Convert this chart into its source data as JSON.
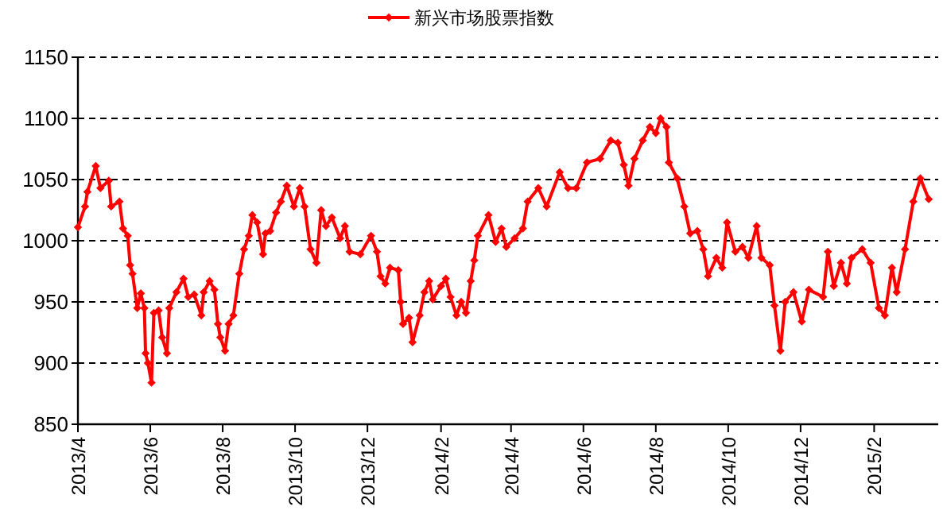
{
  "chart_data": {
    "type": "line",
    "x": [
      "2013-04-01",
      "2013-04-07",
      "2013-04-09",
      "2013-04-16",
      "2013-04-20",
      "2013-04-27",
      "2013-04-29",
      "2013-05-06",
      "2013-05-09",
      "2013-05-13",
      "2013-05-15",
      "2013-05-17",
      "2013-05-21",
      "2013-05-24",
      "2013-05-27",
      "2013-05-28",
      "2013-05-30",
      "2013-06-02",
      "2013-06-04",
      "2013-06-08",
      "2013-06-11",
      "2013-06-15",
      "2013-06-17",
      "2013-06-23",
      "2013-06-29",
      "2013-07-03",
      "2013-07-08",
      "2013-07-14",
      "2013-07-16",
      "2013-07-21",
      "2013-07-25",
      "2013-07-28",
      "2013-07-30",
      "2013-08-03",
      "2013-08-06",
      "2013-08-10",
      "2013-08-15",
      "2013-08-19",
      "2013-08-23",
      "2013-08-26",
      "2013-08-30",
      "2013-09-04",
      "2013-09-06",
      "2013-09-10",
      "2013-09-15",
      "2013-09-19",
      "2013-09-24",
      "2013-09-30",
      "2013-10-05",
      "2013-10-09",
      "2013-10-14",
      "2013-10-19",
      "2013-10-23",
      "2013-10-27",
      "2013-11-01",
      "2013-11-08",
      "2013-11-12",
      "2013-11-16",
      "2013-11-25",
      "2013-12-04",
      "2013-12-09",
      "2013-12-12",
      "2013-12-16",
      "2013-12-20",
      "2013-12-27",
      "2013-12-29",
      "2013-12-31",
      "2014-01-05",
      "2014-01-08",
      "2014-01-14",
      "2014-01-18",
      "2014-01-22",
      "2014-01-25",
      "2014-02-01",
      "2014-02-05",
      "2014-02-09",
      "2014-02-14",
      "2014-02-18",
      "2014-02-22",
      "2014-02-26",
      "2014-03-01",
      "2014-03-04",
      "2014-03-13",
      "2014-03-19",
      "2014-03-24",
      "2014-03-28",
      "2014-04-04",
      "2014-04-11",
      "2014-04-15",
      "2014-04-24",
      "2014-05-01",
      "2014-05-12",
      "2014-05-19",
      "2014-05-26",
      "2014-06-04",
      "2014-06-15",
      "2014-06-24",
      "2014-06-30",
      "2014-07-05",
      "2014-07-09",
      "2014-07-14",
      "2014-07-21",
      "2014-07-27",
      "2014-08-01",
      "2014-08-05",
      "2014-08-10",
      "2014-08-12",
      "2014-08-19",
      "2014-08-25",
      "2014-08-30",
      "2014-09-05",
      "2014-09-10",
      "2014-09-14",
      "2014-09-21",
      "2014-09-26",
      "2014-09-30",
      "2014-10-07",
      "2014-10-13",
      "2014-10-18",
      "2014-10-25",
      "2014-10-29",
      "2014-11-05",
      "2014-11-09",
      "2014-11-14",
      "2014-11-18",
      "2014-11-25",
      "2014-12-02",
      "2014-12-08",
      "2014-12-20",
      "2014-12-24",
      "2014-12-29",
      "2015-01-04",
      "2015-01-09",
      "2015-01-13",
      "2015-01-22",
      "2015-01-29",
      "2015-02-05",
      "2015-02-10",
      "2015-02-16",
      "2015-02-20",
      "2015-02-27",
      "2015-03-06",
      "2015-03-12",
      "2015-03-19"
    ],
    "series": [
      {
        "name": "新兴市场股票指数",
        "color": "#ff0000",
        "values": [
          1011,
          1028,
          1040,
          1061,
          1043,
          1049,
          1028,
          1032,
          1010,
          1004,
          980,
          973,
          945,
          957,
          945,
          908,
          900,
          884,
          941,
          943,
          921,
          908,
          945,
          958,
          969,
          954,
          956,
          939,
          958,
          967,
          960,
          932,
          921,
          910,
          932,
          939,
          973,
          993,
          1004,
          1021,
          1015,
          989,
          1006,
          1008,
          1023,
          1032,
          1045,
          1028,
          1043,
          1028,
          993,
          982,
          1025,
          1012,
          1019,
          1002,
          1012,
          991,
          989,
          1004,
          991,
          971,
          965,
          978,
          976,
          950,
          932,
          937,
          917,
          939,
          958,
          967,
          952,
          963,
          969,
          954,
          939,
          950,
          941,
          967,
          984,
          1004,
          1021,
          999,
          1010,
          995,
          1002,
          1010,
          1032,
          1043,
          1028,
          1056,
          1043,
          1043,
          1064,
          1067,
          1082,
          1080,
          1062,
          1045,
          1067,
          1082,
          1093,
          1088,
          1100,
          1093,
          1064,
          1051,
          1028,
          1006,
          1008,
          993,
          971,
          986,
          978,
          1015,
          991,
          995,
          986,
          1012,
          986,
          980,
          947,
          910,
          950,
          958,
          934,
          960,
          954,
          991,
          963,
          982,
          965,
          986,
          993,
          982,
          945,
          939,
          978,
          958,
          993,
          1032,
          1051,
          1034
        ]
      }
    ],
    "xlim": [
      "2013-04-01",
      "2015-03-27"
    ],
    "xticks": [
      {
        "value": "2013-04",
        "label": "2013/4"
      },
      {
        "value": "2013-06",
        "label": "2013/6"
      },
      {
        "value": "2013-08",
        "label": "2013/8"
      },
      {
        "value": "2013-10",
        "label": "2013/10"
      },
      {
        "value": "2013-12",
        "label": "2013/12"
      },
      {
        "value": "2014-02",
        "label": "2014/2"
      },
      {
        "value": "2014-04",
        "label": "2014/4"
      },
      {
        "value": "2014-06",
        "label": "2014/6"
      },
      {
        "value": "2014-08",
        "label": "2014/8"
      },
      {
        "value": "2014-10",
        "label": "2014/10"
      },
      {
        "value": "2014-12",
        "label": "2014/12"
      },
      {
        "value": "2015-02",
        "label": "2015/2"
      }
    ],
    "ylim": [
      850,
      1150
    ],
    "yticks": [
      850,
      900,
      950,
      1000,
      1050,
      1100,
      1150
    ],
    "grid": "y",
    "legend": "top",
    "marker": "diamond",
    "line_style": "solid"
  }
}
